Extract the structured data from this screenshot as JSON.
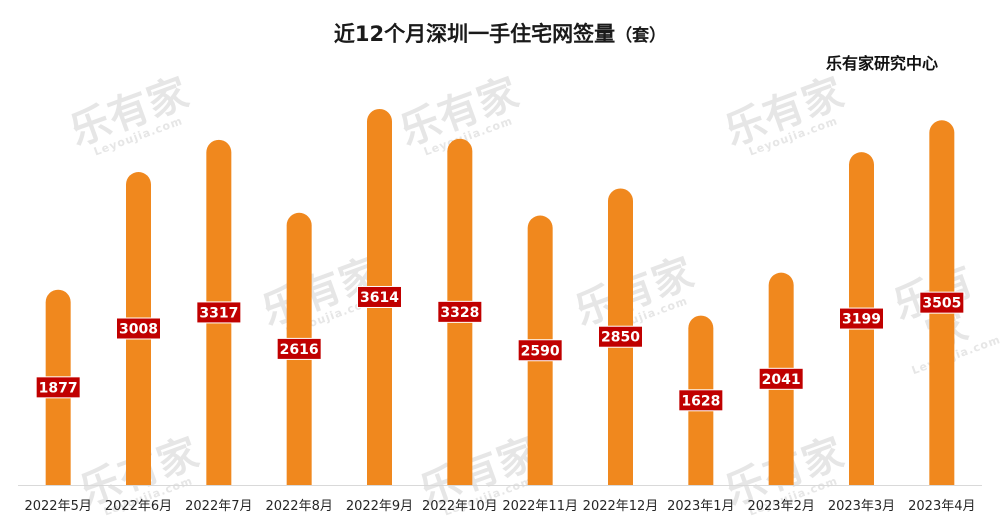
{
  "title": "近12个月深圳一手住宅网签量",
  "title_unit": "（套）",
  "source": "乐有家研究中心",
  "watermark": {
    "brand": "乐有家",
    "site": "Leyoujia.com"
  },
  "colors": {
    "bar": "#f0881e",
    "label_bg": "#c00000",
    "label_text": "#ffffff",
    "axis": "#d9d9d9"
  },
  "chart_data": {
    "type": "bar",
    "categories": [
      "2022年5月",
      "2022年6月",
      "2022年7月",
      "2022年8月",
      "2022年9月",
      "2022年10月",
      "2022年11月",
      "2022年12月",
      "2023年1月",
      "2023年2月",
      "2023年3月",
      "2023年4月"
    ],
    "values": [
      1877,
      3008,
      3317,
      2616,
      3614,
      3328,
      2590,
      2850,
      1628,
      2041,
      3199,
      3505
    ],
    "ylim": [
      0,
      3700
    ],
    "grid": false,
    "legend": "none"
  }
}
